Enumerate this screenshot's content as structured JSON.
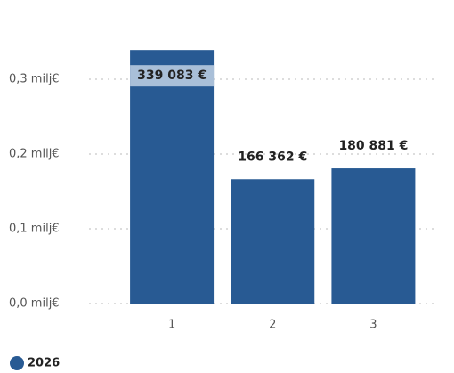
{
  "chart_data": {
    "type": "bar",
    "categories": [
      "1",
      "2",
      "3"
    ],
    "series": [
      {
        "name": "2026",
        "color": "#285a93",
        "values": [
          339083,
          166362,
          180881
        ],
        "value_labels": [
          "339 083 €",
          "166 362 €",
          "180 881 €"
        ]
      }
    ],
    "ylim": [
      0,
      350000
    ],
    "yticks": [
      {
        "value": 0,
        "label": "0,0 milj€"
      },
      {
        "value": 100000,
        "label": "0,1 milj€"
      },
      {
        "value": 200000,
        "label": "0,2 milj€"
      },
      {
        "value": 300000,
        "label": "0,3 milj€"
      }
    ],
    "grid": true,
    "legend": "bottom-left"
  }
}
